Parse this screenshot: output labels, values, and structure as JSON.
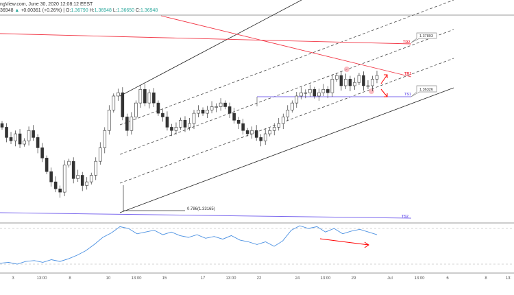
{
  "header": {
    "source": "ngView.com, June 30, 2020 12:08:12 EEST",
    "last": "36948",
    "change": "+0.00361 (+0.26%)",
    "o_label": "O:",
    "o": "1.36790",
    "h_label": "H:",
    "h": "1.36948",
    "l_label": "L:",
    "l": "1.36650",
    "c_label": "C:",
    "c": "1.36948"
  },
  "annotations": {
    "tr2": "TR2",
    "tr1": "TR1",
    "ts1": "TS1",
    "ts2": "TS2",
    "callout_upper": "1.37803",
    "callout_lower": "1.36326",
    "fib": "0.786(1.33165)"
  },
  "colors": {
    "up": "#ffffff",
    "down": "#333333",
    "resistance": "#f23645",
    "support": "#7b68ee",
    "rsi": "#4a90e2",
    "arrow": "#ff0000"
  },
  "time_axis": [
    "3",
    "13:00",
    "8",
    "10",
    "13:00",
    "15",
    "17",
    "13:00",
    "22",
    "24",
    "13:00",
    "29",
    "Jul",
    "13:00",
    "6",
    "8",
    "13:"
  ],
  "chart_data": {
    "type": "candlestick",
    "ylim": [
      1.3289,
      1.385
    ],
    "closes": [
      1.355,
      1.3522,
      1.3513,
      1.3532,
      1.3504,
      1.3513,
      1.3541,
      1.3522,
      1.3494,
      1.3466,
      1.3429,
      1.3401,
      1.3382,
      1.3373,
      1.3447,
      1.3457,
      1.341,
      1.3419,
      1.3391,
      1.3401,
      1.3419,
      1.3457,
      1.3494,
      1.3541,
      1.3597,
      1.3635,
      1.3644,
      1.3578,
      1.3541,
      1.3578,
      1.3616,
      1.3653,
      1.3616,
      1.3644,
      1.3616,
      1.3588,
      1.3578,
      1.355,
      1.3541,
      1.355,
      1.3569,
      1.355,
      1.356,
      1.3588,
      1.3597,
      1.3588,
      1.3597,
      1.3606,
      1.3606,
      1.3616,
      1.3606,
      1.3588,
      1.3569,
      1.356,
      1.3541,
      1.3532,
      1.3541,
      1.3522,
      1.3513,
      1.3532,
      1.3541,
      1.355,
      1.356,
      1.3578,
      1.3597,
      1.3616,
      1.3635,
      1.3644,
      1.3644,
      1.3653,
      1.3635,
      1.3644,
      1.3653,
      1.3644,
      1.3681,
      1.3691,
      1.3663,
      1.3681,
      1.3663,
      1.3672,
      1.3691,
      1.3663,
      1.3663,
      1.3681,
      1.3691
    ],
    "rsi": {
      "ylim": [
        0,
        100
      ],
      "levels": [
        70,
        30
      ],
      "values": [
        31,
        32,
        30,
        33,
        34,
        32,
        35,
        33,
        36,
        40,
        45,
        52,
        60,
        65,
        72,
        70,
        64,
        66,
        68,
        63,
        66,
        62,
        60,
        63,
        59,
        61,
        58,
        62,
        57,
        55,
        52,
        55,
        50,
        56,
        68,
        73,
        70,
        72,
        66,
        70,
        64,
        67,
        69,
        66,
        63
      ]
    }
  }
}
